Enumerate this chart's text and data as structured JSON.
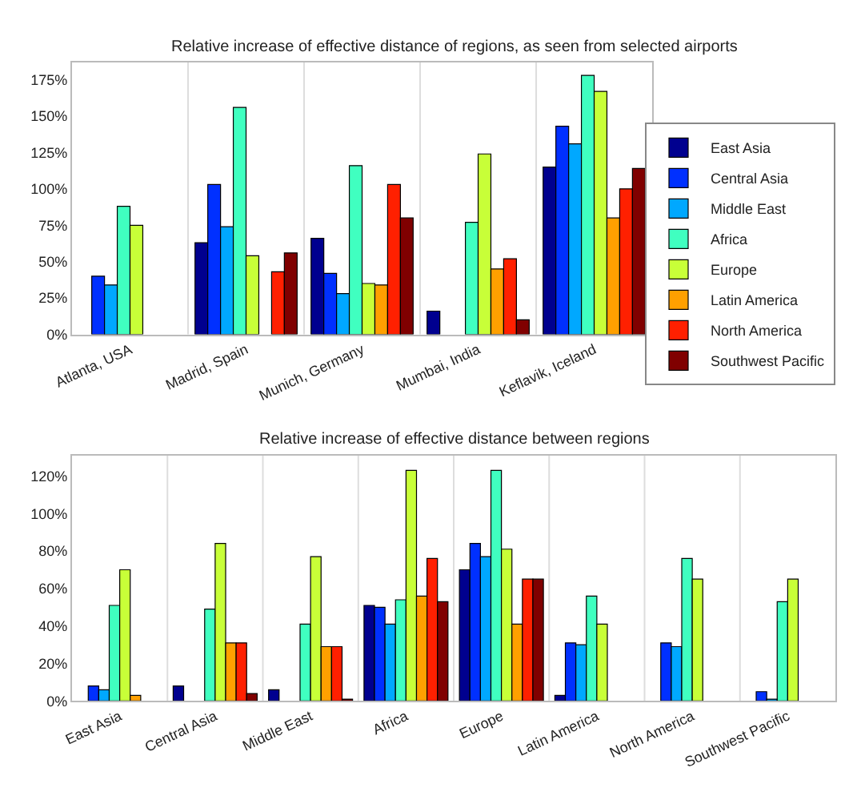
{
  "chart_data": [
    {
      "type": "bar",
      "title": "Relative increase of effective distance of regions, as seen from selected airports",
      "categories": [
        "Atlanta, USA",
        "Madrid, Spain",
        "Munich, Germany",
        "Mumbai, India",
        "Keflavik, Iceland"
      ],
      "series": [
        {
          "name": "East Asia",
          "color": "#00008f",
          "values": [
            null,
            63,
            66,
            16,
            115
          ]
        },
        {
          "name": "Central Asia",
          "color": "#0030ff",
          "values": [
            40,
            103,
            42,
            null,
            143
          ]
        },
        {
          "name": "Middle East",
          "color": "#00a8ff",
          "values": [
            34,
            74,
            28,
            null,
            131
          ]
        },
        {
          "name": "Africa",
          "color": "#40ffc0",
          "values": [
            88,
            156,
            116,
            77,
            178
          ]
        },
        {
          "name": "Europe",
          "color": "#c8ff38",
          "values": [
            75,
            54,
            35,
            124,
            167
          ]
        },
        {
          "name": "Latin America",
          "color": "#ffa000",
          "values": [
            null,
            null,
            34,
            45,
            80
          ]
        },
        {
          "name": "North America",
          "color": "#ff2000",
          "values": [
            null,
            43,
            103,
            52,
            100
          ]
        },
        {
          "name": "Southwest Pacific",
          "color": "#800000",
          "values": [
            null,
            56,
            80,
            10,
            114
          ]
        }
      ],
      "ylim": [
        0,
        187
      ],
      "yticks": [
        {
          "value": 0,
          "label": "0%"
        },
        {
          "value": 25,
          "label": "25%"
        },
        {
          "value": 50,
          "label": "50%"
        },
        {
          "value": 75,
          "label": "75%"
        },
        {
          "value": 100,
          "label": "100%"
        },
        {
          "value": 125,
          "label": "125%"
        },
        {
          "value": 150,
          "label": "150%"
        },
        {
          "value": 175,
          "label": "175%"
        }
      ],
      "grid": "x",
      "legend": "right"
    },
    {
      "type": "bar",
      "title": "Relative increase of effective distance between regions",
      "categories": [
        "East Asia",
        "Central Asia",
        "Middle East",
        "Africa",
        "Europe",
        "Latin America",
        "North America",
        "Southwest Pacific"
      ],
      "series": [
        {
          "color": "#00008f",
          "values": [
            null,
            8,
            6,
            51,
            70,
            3,
            null,
            null
          ]
        },
        {
          "color": "#0030ff",
          "values": [
            8,
            null,
            null,
            50,
            84,
            31,
            31,
            5
          ]
        },
        {
          "color": "#00a8ff",
          "values": [
            6,
            null,
            null,
            41,
            77,
            30,
            29,
            1
          ]
        },
        {
          "color": "#40ffc0",
          "values": [
            51,
            49,
            41,
            54,
            123,
            56,
            76,
            53
          ]
        },
        {
          "color": "#c8ff38",
          "values": [
            70,
            84,
            77,
            123,
            81,
            41,
            65,
            65
          ]
        },
        {
          "color": "#ffa000",
          "values": [
            3,
            31,
            29,
            56,
            41,
            null,
            null,
            null
          ]
        },
        {
          "color": "#ff2000",
          "values": [
            null,
            31,
            29,
            76,
            65,
            null,
            null,
            null
          ]
        },
        {
          "color": "#800000",
          "values": [
            null,
            4,
            1,
            53,
            65,
            null,
            null,
            null
          ]
        }
      ],
      "ylim": [
        0,
        131
      ],
      "yticks": [
        {
          "value": 0,
          "label": "0%"
        },
        {
          "value": 20,
          "label": "20%"
        },
        {
          "value": 40,
          "label": "40%"
        },
        {
          "value": 60,
          "label": "60%"
        },
        {
          "value": 80,
          "label": "80%"
        },
        {
          "value": 100,
          "label": "100%"
        },
        {
          "value": 120,
          "label": "120%"
        }
      ],
      "grid": "x"
    }
  ]
}
